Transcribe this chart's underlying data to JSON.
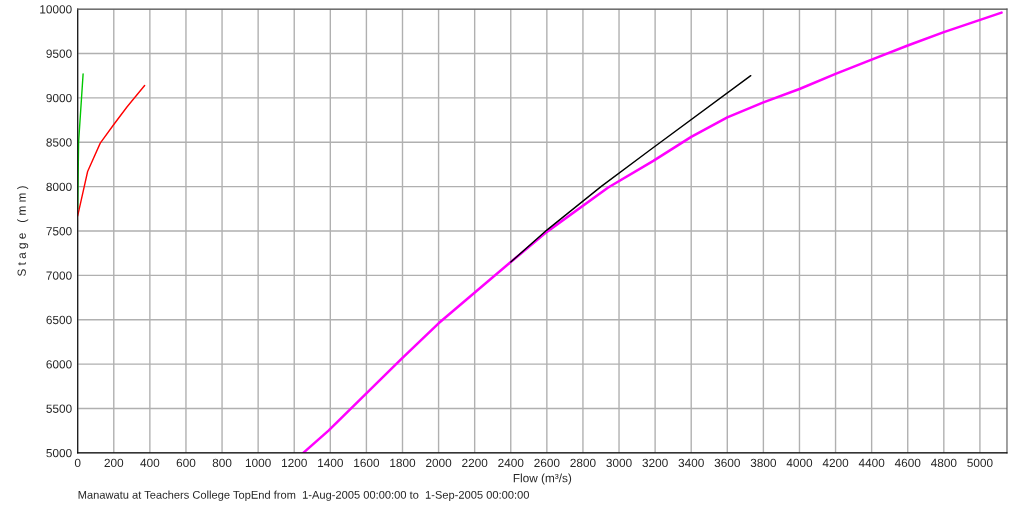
{
  "chart_data": {
    "type": "line",
    "xlabel": "Flow (m³/s)",
    "ylabel": "S t a g e   ( m m )",
    "annotations": [
      "Manawatu at Teachers College TopEnd from  1-Aug-2005 00:00:00 to  1-Sep-2005 00:00:00"
    ],
    "series": [
      {
        "color": "#00c800",
        "x": [
          0,
          5,
          30
        ],
        "values": [
          7750,
          8500,
          9270
        ]
      },
      {
        "color": "#ff0000",
        "x": [
          0,
          55,
          125,
          200,
          274,
          371
        ],
        "values": [
          7670,
          8170,
          8490,
          8700,
          8900,
          9140
        ]
      },
      {
        "color": "#ff00ff",
        "x": [
          1250,
          1390,
          1790,
          2000,
          2400,
          2600,
          2940,
          3190,
          3400,
          3600,
          3800,
          4000,
          4200,
          4400,
          4600,
          4800,
          5120
        ],
        "values": [
          5000,
          5250,
          6050,
          6460,
          7150,
          7490,
          7990,
          8290,
          8560,
          8780,
          8950,
          9100,
          9270,
          9430,
          9590,
          9740,
          9960
        ]
      },
      {
        "color": "#000000",
        "x": [
          2400,
          2600,
          2900,
          3170,
          3730
        ],
        "values": [
          7150,
          7510,
          8000,
          8410,
          9250
        ]
      }
    ],
    "xlim": [
      0,
      5150
    ],
    "ylim": [
      5000,
      10000
    ],
    "xticks": [
      0,
      200,
      400,
      600,
      800,
      1000,
      1200,
      1400,
      1600,
      1800,
      2000,
      2200,
      2400,
      2600,
      2800,
      3000,
      3200,
      3400,
      3600,
      3800,
      4000,
      4200,
      4400,
      4600,
      4800,
      5000
    ],
    "yticks": [
      5000,
      5500,
      6000,
      6500,
      7000,
      7500,
      8000,
      8500,
      9000,
      9500,
      10000
    ],
    "grid": true,
    "legend": false
  }
}
